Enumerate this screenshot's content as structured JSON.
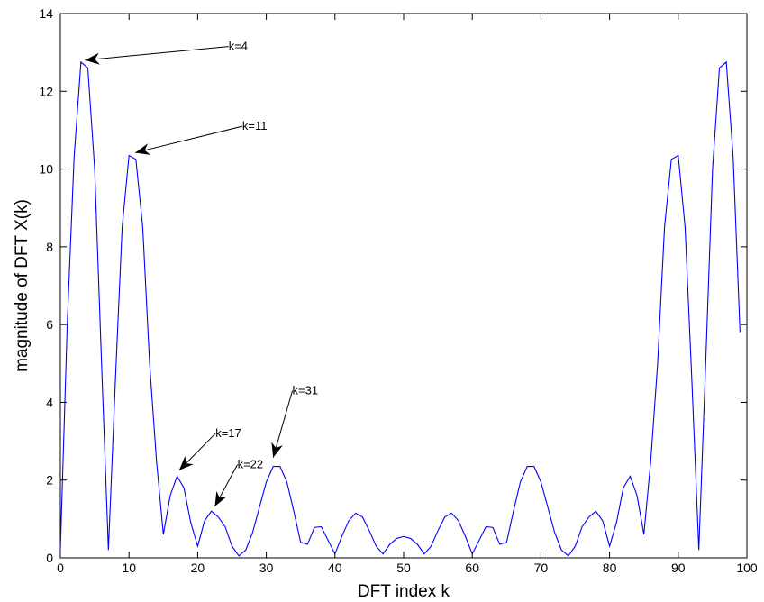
{
  "chart_data": {
    "type": "line",
    "title": "",
    "xlabel": "DFT index k",
    "ylabel": "magnitude of DFT X(k)",
    "xlim": [
      0,
      100
    ],
    "ylim": [
      0,
      14
    ],
    "xticks": [
      0,
      10,
      20,
      30,
      40,
      50,
      60,
      70,
      80,
      90,
      100
    ],
    "yticks": [
      0,
      2,
      4,
      6,
      8,
      10,
      12,
      14
    ],
    "grid": false,
    "line_color": "#0000ff",
    "series": [
      {
        "x": [
          0,
          1,
          2,
          3,
          4,
          5,
          6,
          7,
          8,
          9,
          10,
          11,
          12,
          13,
          14,
          15,
          16,
          17,
          18,
          19,
          20,
          21,
          22,
          23,
          24,
          25,
          26,
          27,
          28,
          29,
          30,
          31,
          32,
          33,
          34,
          35,
          36,
          37,
          38,
          39,
          40,
          41,
          42,
          43,
          44,
          45,
          46,
          47,
          48,
          49,
          50,
          51,
          52,
          53,
          54,
          55,
          56,
          57,
          58,
          59,
          60,
          61,
          62,
          63,
          64,
          65,
          66,
          67,
          68,
          69,
          70,
          71,
          72,
          73,
          74,
          75,
          76,
          77,
          78,
          79,
          80,
          81,
          82,
          83,
          84,
          85,
          86,
          87,
          88,
          89,
          90,
          91,
          92,
          93,
          94,
          95,
          96,
          97,
          98,
          99
        ],
        "values": [
          0.2,
          6.0,
          10.3,
          12.75,
          12.6,
          10.0,
          5.0,
          0.2,
          4.5,
          8.5,
          10.35,
          10.25,
          8.5,
          5.0,
          2.5,
          0.6,
          1.6,
          2.1,
          1.8,
          0.9,
          0.3,
          0.95,
          1.2,
          1.05,
          0.8,
          0.3,
          0.05,
          0.2,
          0.65,
          1.3,
          1.95,
          2.35,
          2.35,
          1.95,
          1.2,
          0.4,
          0.35,
          0.78,
          0.8,
          0.45,
          0.1,
          0.55,
          0.95,
          1.15,
          1.05,
          0.7,
          0.3,
          0.1,
          0.35,
          0.5,
          0.55,
          0.5,
          0.35,
          0.1,
          0.3,
          0.7,
          1.05,
          1.15,
          0.95,
          0.55,
          0.1,
          0.45,
          0.8,
          0.78,
          0.35,
          0.4,
          1.2,
          1.95,
          2.35,
          2.35,
          1.95,
          1.3,
          0.65,
          0.2,
          0.05,
          0.3,
          0.8,
          1.05,
          1.2,
          0.95,
          0.3,
          0.9,
          1.8,
          2.1,
          1.6,
          0.6,
          2.5,
          5.0,
          8.5,
          10.25,
          10.35,
          8.5,
          4.5,
          0.2,
          5.0,
          10.0,
          12.6,
          12.75,
          10.3,
          5.8
        ]
      }
    ],
    "annotations": [
      {
        "text": "k=4",
        "point": [
          3.6,
          12.8
        ],
        "text_pos": [
          24.5,
          13.15
        ]
      },
      {
        "text": "k=11",
        "point": [
          10.9,
          10.42
        ],
        "text_pos": [
          26.5,
          11.1
        ]
      },
      {
        "text": "k=17",
        "point": [
          17.3,
          2.25
        ],
        "text_pos": [
          22.6,
          3.2
        ]
      },
      {
        "text": "k=22",
        "point": [
          22.5,
          1.32
        ],
        "text_pos": [
          25.8,
          2.4
        ]
      },
      {
        "text": "k=31",
        "point": [
          31.0,
          2.58
        ],
        "text_pos": [
          33.8,
          4.3
        ]
      }
    ]
  }
}
